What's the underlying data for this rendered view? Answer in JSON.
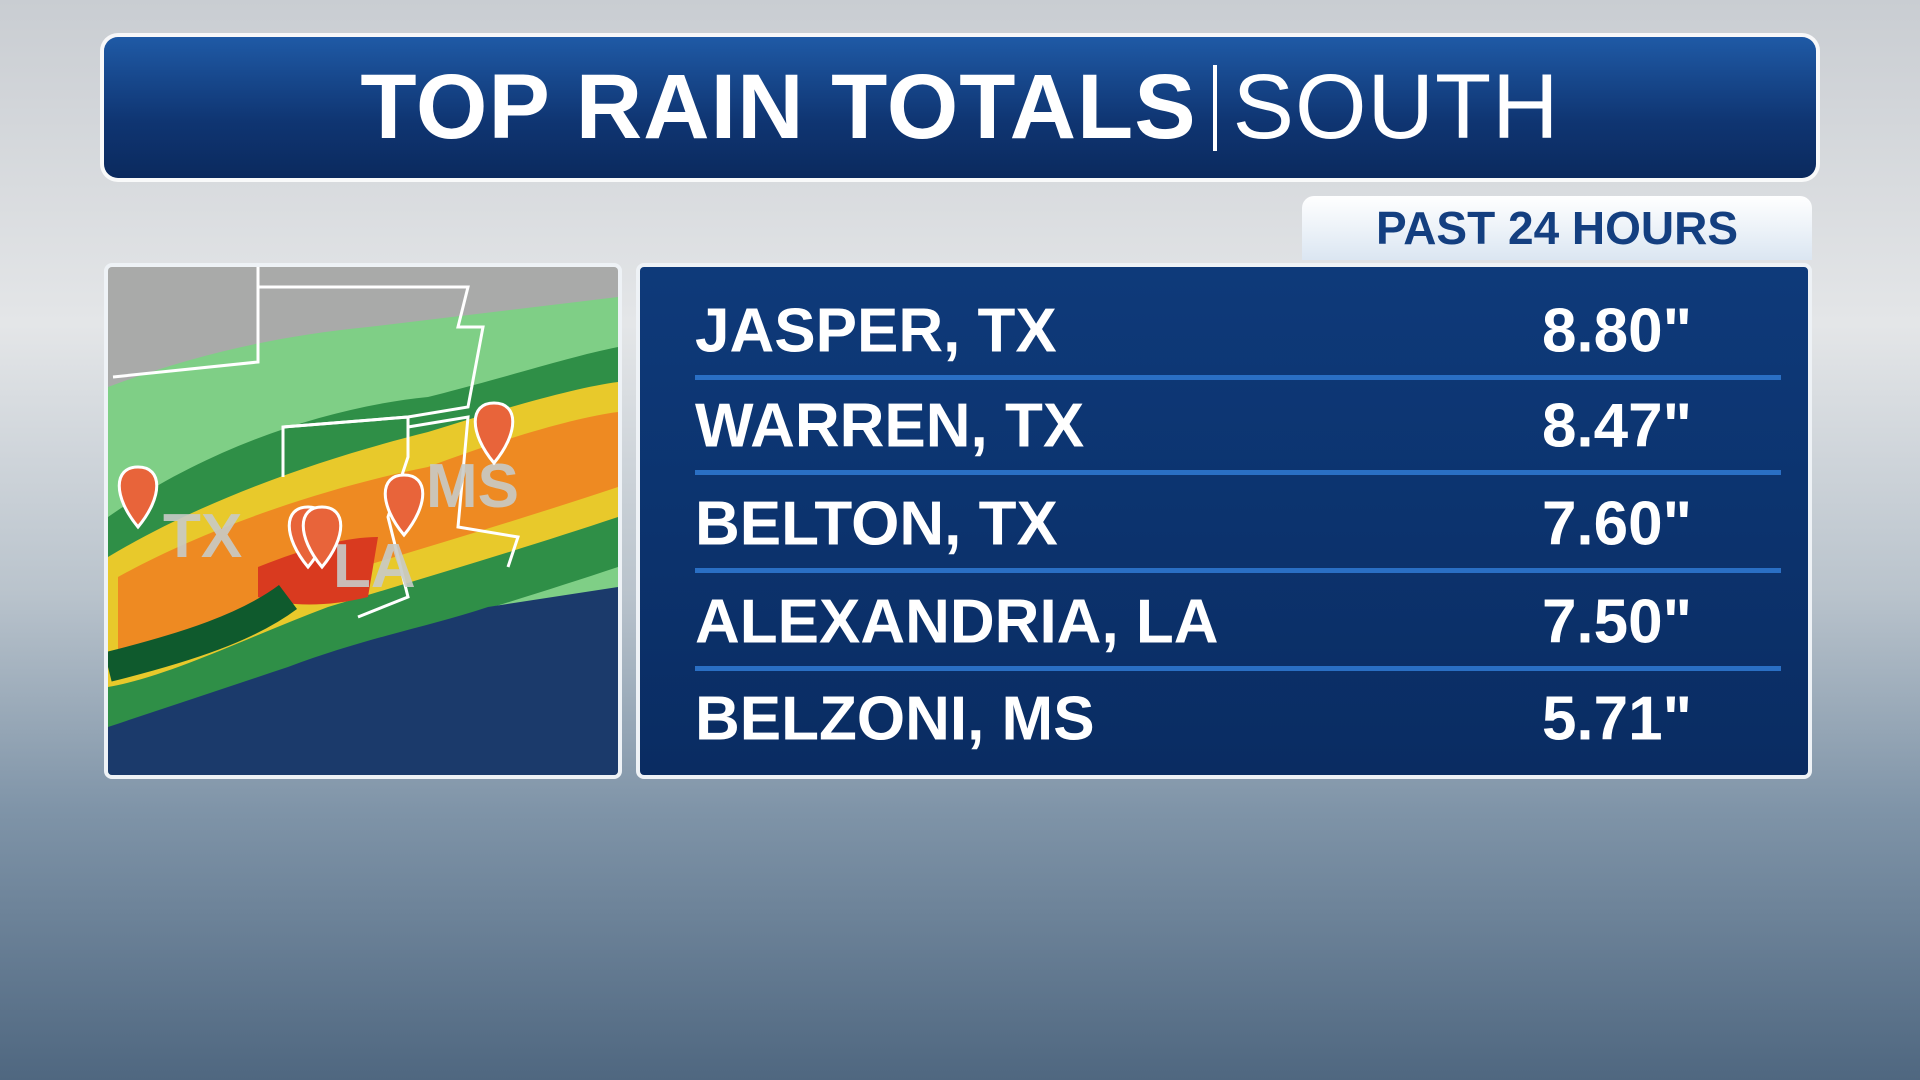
{
  "header": {
    "title": "TOP RAIN TOTALS",
    "subtitle": "SOUTH"
  },
  "badge": "PAST 24 HOURS",
  "map": {
    "labels": [
      "TX",
      "LA",
      "MS"
    ]
  },
  "table": {
    "rows": [
      [
        "JASPER, TX",
        "8.80\""
      ],
      [
        "WARREN, TX",
        "8.47\""
      ],
      [
        "BELTON, TX",
        "7.60\""
      ],
      [
        "ALEXANDRIA, LA",
        "7.50\""
      ],
      [
        "BELZONI, MS",
        "5.71\""
      ]
    ]
  }
}
